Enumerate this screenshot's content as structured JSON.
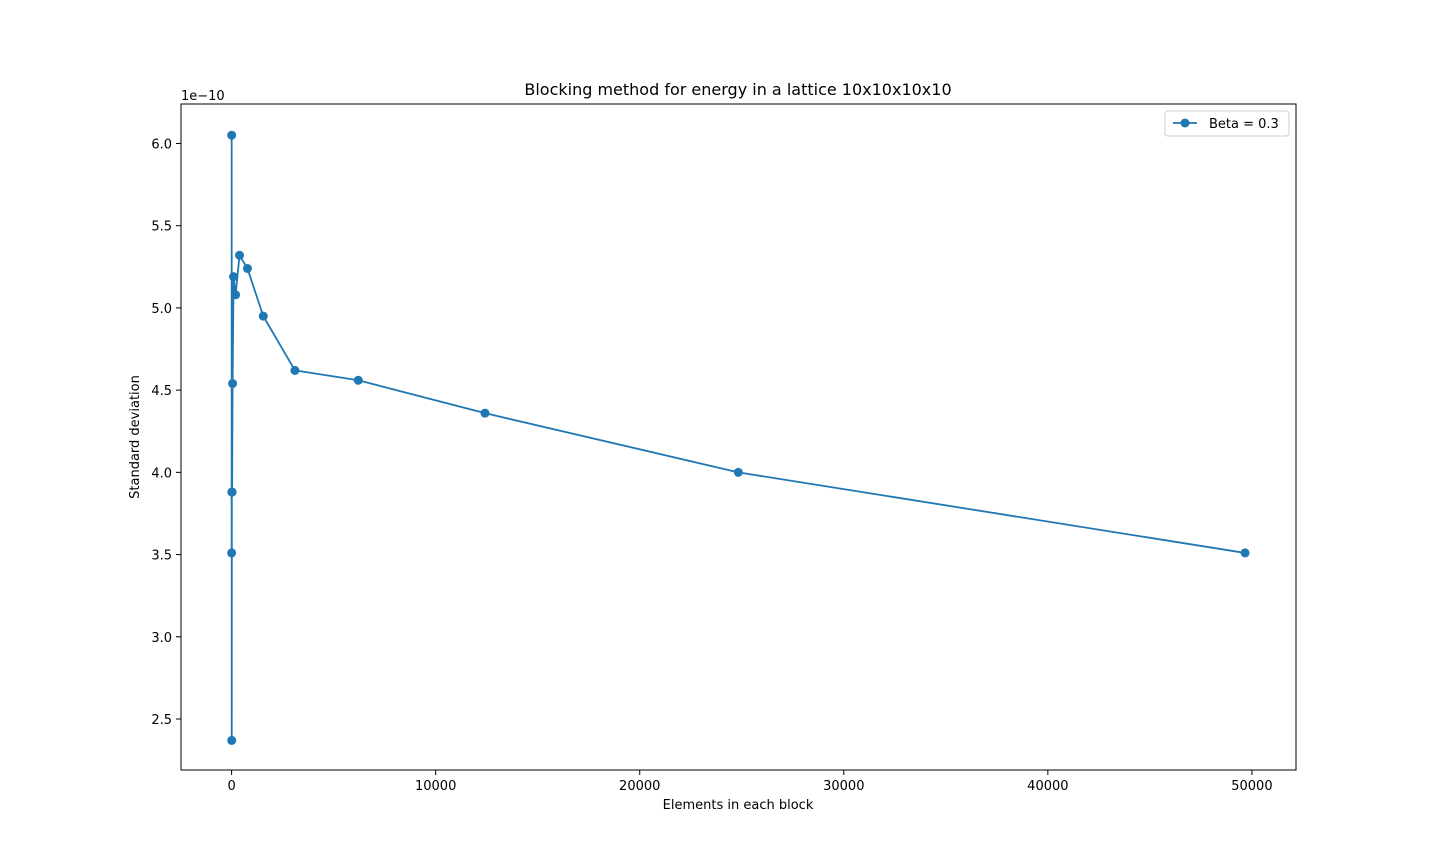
{
  "chart_data": {
    "type": "line",
    "title": "Blocking method for energy in a lattice 10x10x10x10",
    "xlabel": "Elements in each block",
    "ylabel": "Standard deviation",
    "y_offset_text": "1e−10",
    "xlim": [
      -2480,
      52160
    ],
    "ylim": [
      2.19,
      6.24
    ],
    "x_ticks": [
      0,
      10000,
      20000,
      30000,
      40000,
      50000
    ],
    "x_tick_labels": [
      "0",
      "10000",
      "20000",
      "30000",
      "40000",
      "50000"
    ],
    "y_ticks": [
      2.5,
      3.0,
      3.5,
      4.0,
      4.5,
      5.0,
      5.5,
      6.0
    ],
    "y_tick_labels": [
      "2.5",
      "3.0",
      "3.5",
      "4.0",
      "4.5",
      "5.0",
      "5.5",
      "6.0"
    ],
    "grid": false,
    "legend_position": "top-right",
    "series": [
      {
        "name": "Beta = 0.3",
        "color": "#1f77b4",
        "marker": "circle",
        "x": [
          1,
          3,
          6,
          12,
          24,
          48,
          97,
          194,
          388,
          776,
          1552,
          3104,
          6208,
          12416,
          24832,
          49664
        ],
        "y": [
          3.51,
          6.05,
          2.37,
          3.88,
          3.88,
          4.54,
          5.19,
          5.08,
          5.32,
          5.24,
          4.95,
          4.62,
          4.56,
          4.36,
          4.0,
          3.51
        ]
      }
    ]
  }
}
